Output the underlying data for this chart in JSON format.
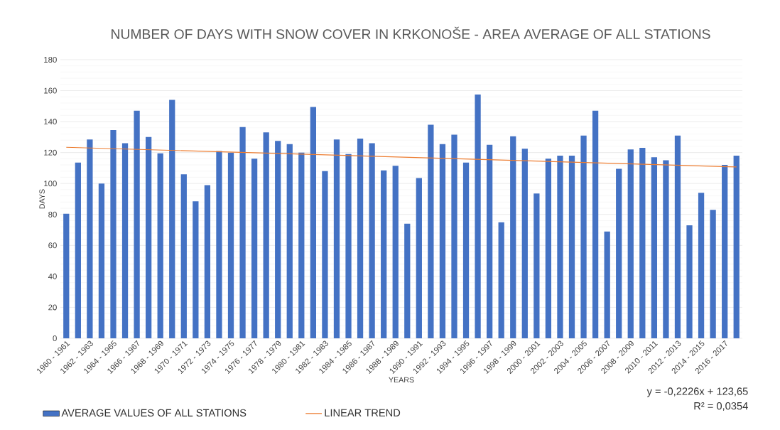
{
  "chart_data": {
    "type": "bar",
    "title": "NUMBER OF DAYS WITH SNOW COVER IN KRKONOŠE - AREA AVERAGE OF ALL STATIONS",
    "xlabel": "YEARS",
    "ylabel": "DAYS",
    "categories": [
      "1960 - 1961",
      null,
      "1962 - 1963",
      null,
      "1964 - 1965",
      null,
      "1966 - 1967",
      null,
      "1968 - 1969",
      null,
      "1970 - 1971",
      null,
      "1972 - 1973",
      null,
      "1974 - 1975",
      null,
      "1976 - 1977",
      null,
      "1978 - 1979",
      null,
      "1980 - 1981",
      null,
      "1982 - 1983",
      null,
      "1984 - 1985",
      null,
      "1986 - 1987",
      null,
      "1988 - 1989",
      null,
      "1990 - 1991",
      null,
      "1992 - 1993",
      null,
      "1994 - 1995",
      null,
      "1996 - 1997",
      null,
      "1998 - 1999",
      null,
      "2000 - 2001",
      null,
      "2002 - 2003",
      null,
      "2004 - 2005",
      null,
      "2006 - 2007",
      null,
      "2008 - 2009",
      null,
      "2010 - 2011",
      null,
      "2012 - 2013",
      null,
      "2014 - 2015",
      null,
      "2016 - 2017",
      null
    ],
    "series": [
      {
        "name": "AVERAGE VALUES OF ALL STATIONS",
        "color": "#4472c4",
        "values": [
          80.5,
          113.5,
          128.5,
          100,
          134.5,
          126,
          147,
          130,
          119.5,
          154,
          106,
          88.5,
          99,
          121,
          120,
          136.5,
          116,
          133,
          127.5,
          125.5,
          120,
          149.5,
          108,
          128.5,
          119,
          129,
          126,
          108.5,
          111.5,
          74,
          103.5,
          138,
          125.5,
          131.5,
          113.5,
          157.5,
          125,
          75,
          130.5,
          122.5,
          93.5,
          116,
          118,
          118,
          131,
          147,
          69,
          109.5,
          122,
          123,
          117,
          115,
          131,
          73,
          94,
          83,
          112,
          118
        ]
      },
      {
        "name": "LINEAR TREND",
        "type": "line",
        "color": "#ed7d31",
        "values": [
          123.4,
          null,
          null,
          null,
          null,
          null,
          null,
          null,
          null,
          null,
          null,
          null,
          null,
          null,
          null,
          null,
          null,
          null,
          null,
          null,
          null,
          null,
          null,
          null,
          null,
          null,
          null,
          null,
          null,
          null,
          null,
          null,
          null,
          null,
          null,
          null,
          null,
          null,
          null,
          null,
          null,
          null,
          null,
          null,
          null,
          null,
          null,
          null,
          null,
          null,
          null,
          null,
          null,
          null,
          null,
          null,
          null,
          110.7
        ]
      }
    ],
    "ylim": [
      0,
      180
    ],
    "yticks": [
      0,
      20,
      40,
      60,
      80,
      100,
      120,
      140,
      160,
      180
    ],
    "grid": "y",
    "legend": "bottom",
    "annotations": [
      "y = -0,2226x + 123,65",
      "R² = 0,0354"
    ]
  }
}
